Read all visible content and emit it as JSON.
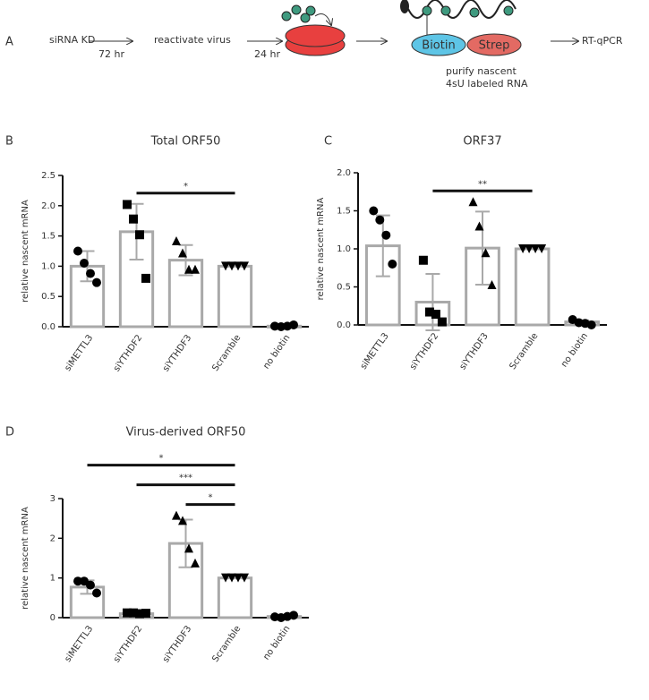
{
  "diagram": {
    "label": "A",
    "step1": "siRNA KD",
    "time1": "72 hr",
    "step2": "reactivate virus",
    "time2": "24 hr",
    "biotin": "Biotin",
    "strep": "Strep",
    "purify1": "purify nascent",
    "purify2": "4sU labeled RNA",
    "step3": "RT-qPCR"
  },
  "chart_data": [
    {
      "type": "bar",
      "label": "B",
      "title": "Total ORF50",
      "y_label": "relative nascent mRNA",
      "categories": [
        "siMETTL3",
        "siYTHDF2",
        "siYTHDF3",
        "Scramble",
        "no biotin"
      ],
      "values": [
        1.0,
        1.57,
        1.1,
        1.0,
        0.01
      ],
      "errors": [
        0.25,
        0.46,
        0.25,
        0,
        0.01
      ],
      "points": [
        [
          1.25,
          1.05,
          0.88,
          0.73
        ],
        [
          2.02,
          1.78,
          1.52,
          0.8
        ],
        [
          1.42,
          1.22,
          0.95,
          0.95
        ],
        [
          1,
          1,
          1,
          1
        ],
        [
          0.01,
          0.0,
          0.01,
          0.03
        ]
      ],
      "markers": [
        "circle",
        "square",
        "triangle",
        "inverted-triangle",
        "circle"
      ],
      "color": "#a9a9a9",
      "point_color": "#000000",
      "ylim": [
        0,
        2.5
      ],
      "yticks": [
        {
          "value": 0,
          "label": "0.0"
        },
        0.5,
        {
          "value": 1,
          "label": "1.0"
        },
        1.5,
        {
          "value": 2,
          "label": "2.0"
        },
        2.5
      ],
      "comparisons": [
        {
          "between": [
            "siYTHDF2",
            "Scramble"
          ],
          "label": "*"
        }
      ]
    },
    {
      "type": "bar",
      "label": "C",
      "title": "ORF37",
      "y_label": "relative nascent mRNA",
      "categories": [
        "siMETTL3",
        "siYTHDF2",
        "siYTHDF3",
        "Scramble",
        "no biotin"
      ],
      "values": [
        1.04,
        0.3,
        1.01,
        1.0,
        0.04
      ],
      "errors": [
        0.4,
        0.37,
        0.48,
        0,
        0.02
      ],
      "points": [
        [
          1.5,
          1.38,
          1.18,
          0.8
        ],
        [
          0.85,
          0.17,
          0.14,
          0.04
        ],
        [
          1.62,
          1.3,
          0.95,
          0.53
        ],
        [
          1,
          1,
          1,
          1
        ],
        [
          0.07,
          0.03,
          0.02,
          0.0
        ]
      ],
      "markers": [
        "circle",
        "square",
        "triangle",
        "inverted-triangle",
        "circle"
      ],
      "color": "#a9a9a9",
      "point_color": "#000000",
      "ylim": [
        0,
        2
      ],
      "yticks": [
        {
          "value": 0,
          "label": "0.0"
        },
        0.5,
        {
          "value": 1,
          "label": "1.0"
        },
        1.5,
        {
          "value": 2,
          "label": "2.0"
        }
      ],
      "comparisons": [
        {
          "between": [
            "siYTHDF2",
            "Scramble"
          ],
          "label": "**"
        }
      ]
    },
    {
      "type": "bar",
      "label": "D",
      "title": "Virus-derived ORF50",
      "y_label": "relative nascent mRNA",
      "categories": [
        "siMETTL3",
        "siYTHDF2",
        "siYTHDF3",
        "Scramble",
        "no biotin"
      ],
      "values": [
        0.77,
        0.1,
        1.87,
        1.0,
        0.03
      ],
      "errors": [
        0.17,
        0.02,
        0.6,
        0,
        0.02
      ],
      "points": [
        [
          0.92,
          0.92,
          0.82,
          0.62
        ],
        [
          0.12,
          0.12,
          0.1,
          0.11
        ],
        [
          2.58,
          2.45,
          1.75,
          1.38
        ],
        [
          1,
          1,
          1,
          1
        ],
        [
          0.02,
          0.0,
          0.03,
          0.06
        ]
      ],
      "markers": [
        "circle",
        "square",
        "triangle",
        "inverted-triangle",
        "circle"
      ],
      "color": "#a9a9a9",
      "point_color": "#000000",
      "ylim": [
        0,
        3
      ],
      "yticks": [
        0,
        1,
        2,
        3
      ],
      "comparisons": [
        {
          "between": [
            "siYTHDF3",
            "Scramble"
          ],
          "label": "*"
        },
        {
          "between": [
            "siYTHDF2",
            "Scramble"
          ],
          "label": "***"
        },
        {
          "between": [
            "siMETTL3",
            "Scramble"
          ],
          "label": "*"
        }
      ]
    }
  ]
}
